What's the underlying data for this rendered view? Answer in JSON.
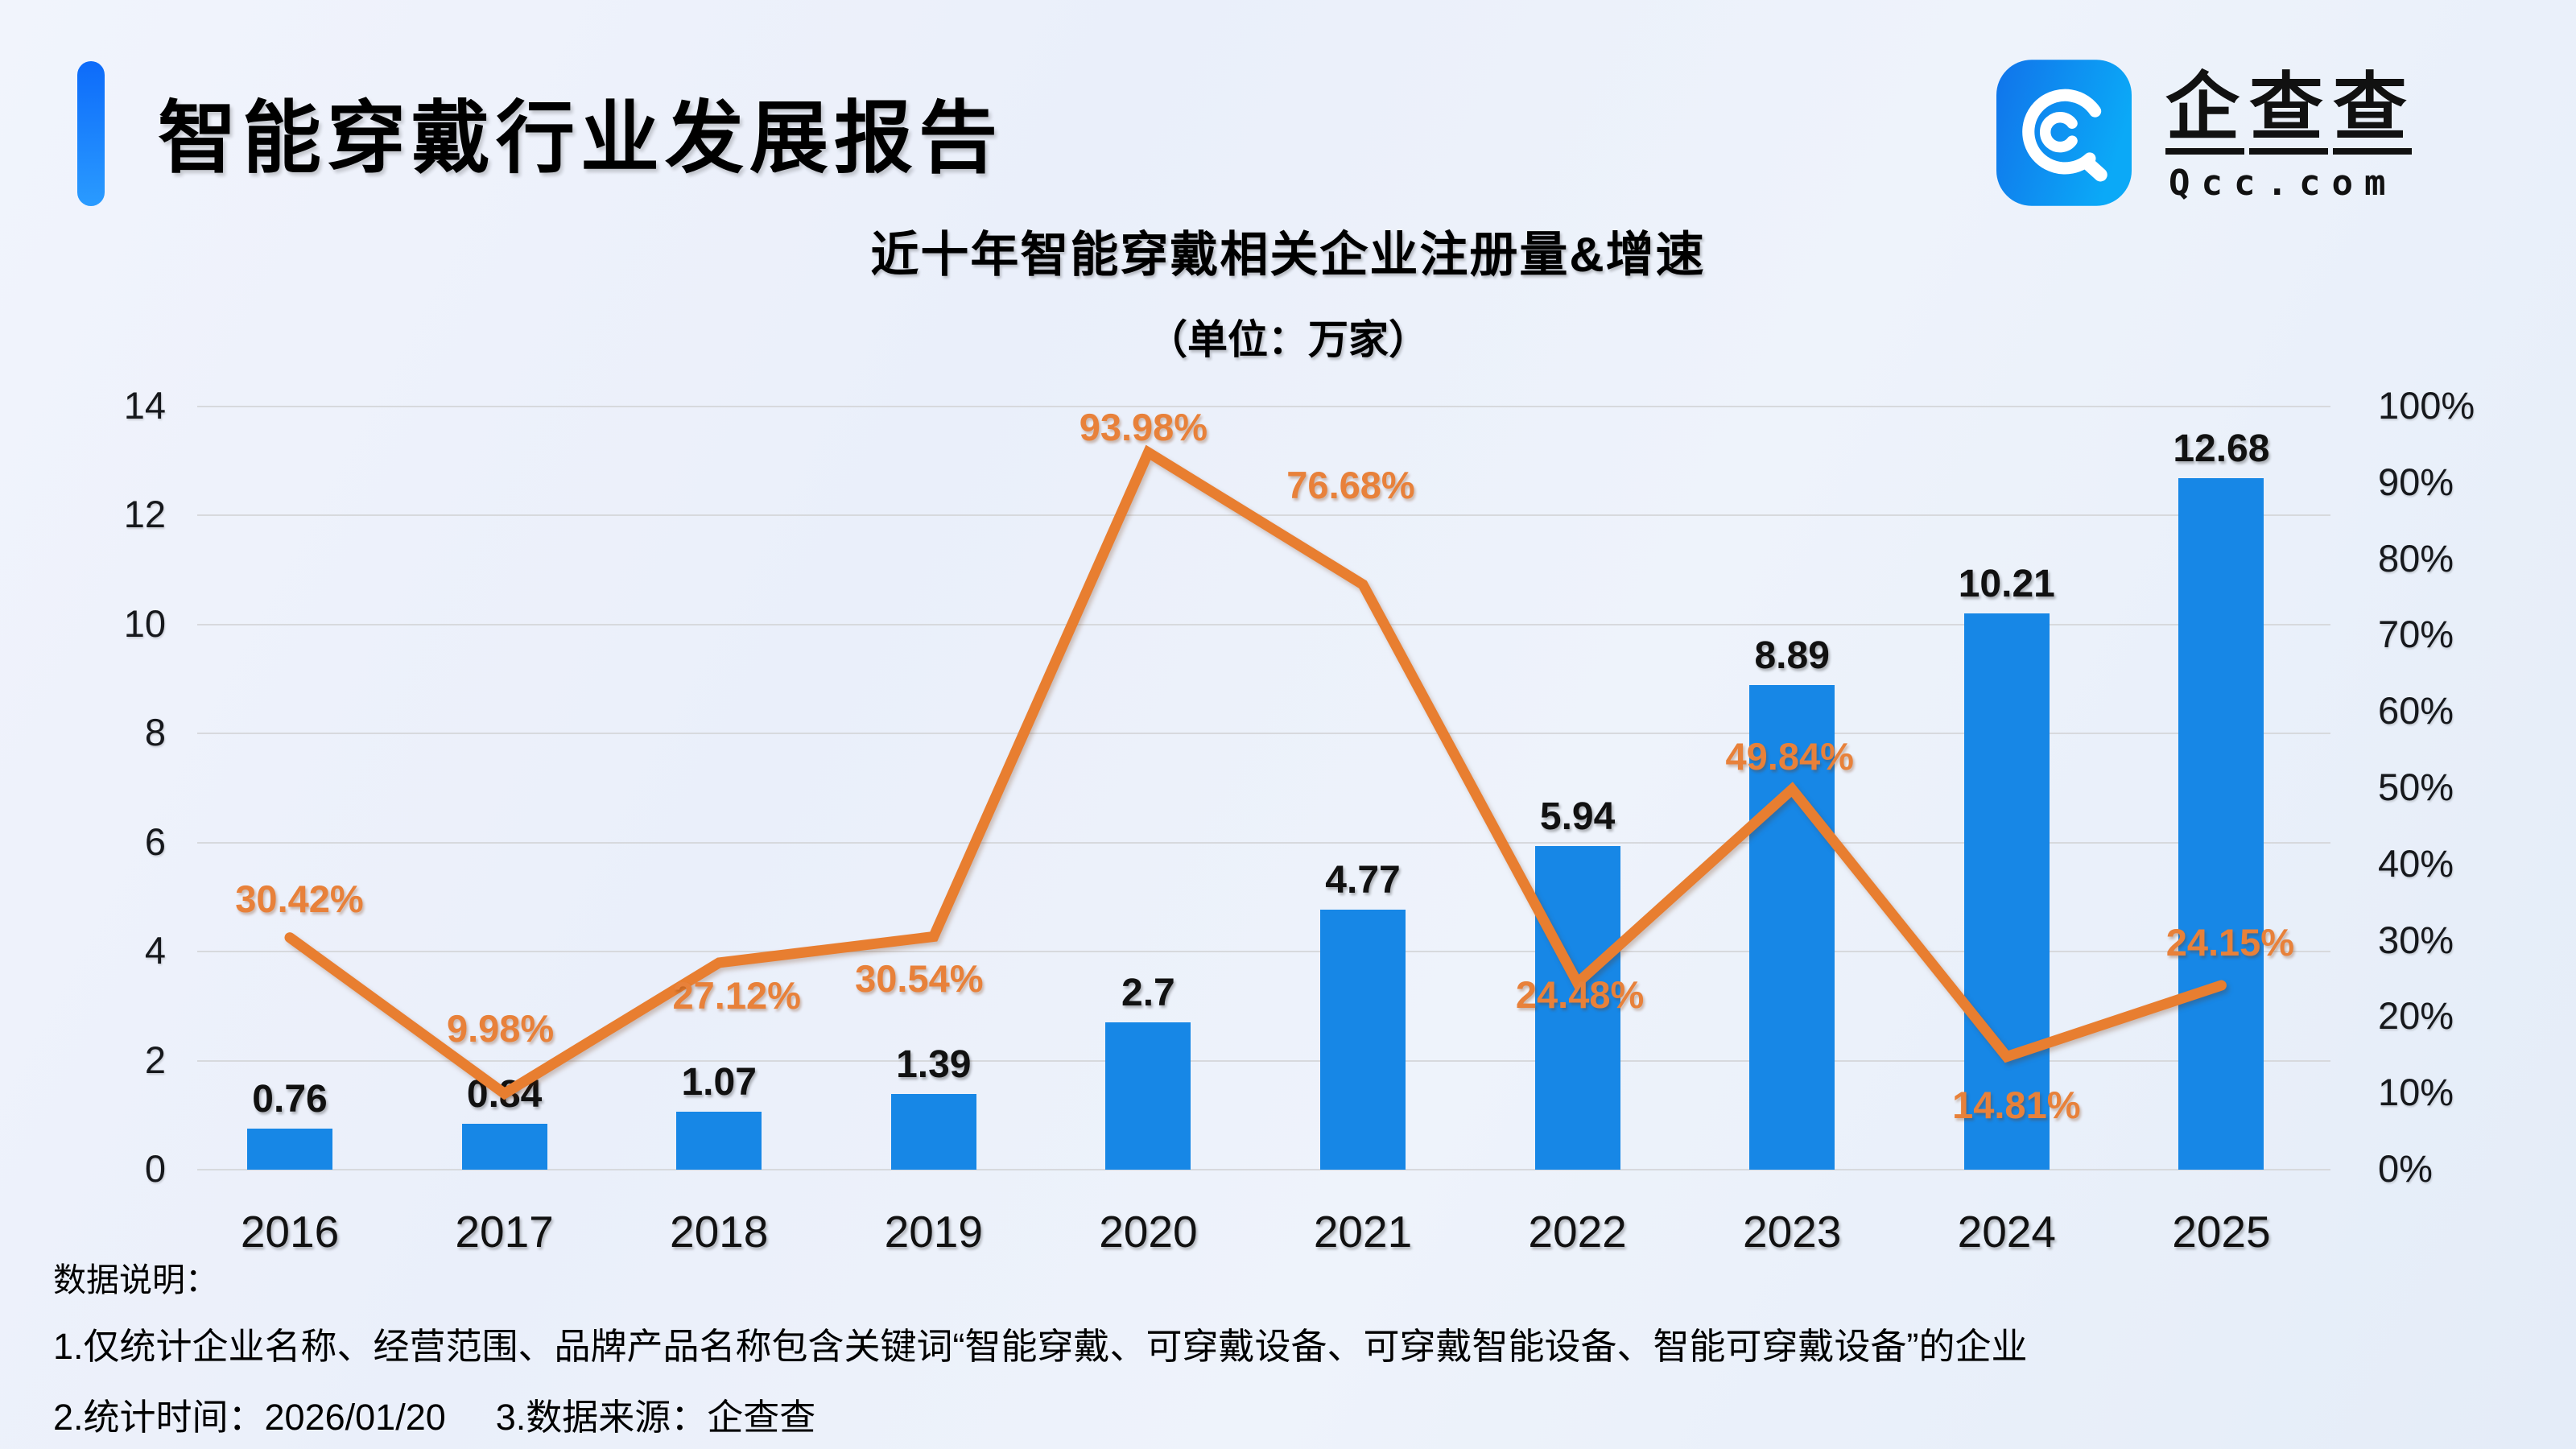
{
  "header": {
    "title": "智能穿戴行业发展报告",
    "accent_color": "#1677ff",
    "logo": {
      "brand": "企查查",
      "domain": "Qcc.com",
      "icon": "qcc-magnifier-icon",
      "icon_color_from": "#1173ea",
      "icon_color_to": "#0ba9f7"
    }
  },
  "chart": {
    "title": "近十年智能穿戴相关企业注册量&增速",
    "subtitle": "（单位：万家）"
  },
  "chart_data": {
    "type": "bar+line",
    "title": "近十年智能穿戴相关企业注册量&增速",
    "subtitle": "（单位：万家）",
    "unit": "万家",
    "categories": [
      "2016",
      "2017",
      "2018",
      "2019",
      "2020",
      "2021",
      "2022",
      "2023",
      "2024",
      "2025"
    ],
    "series": [
      {
        "name": "注册量",
        "type": "bar",
        "color": "#1787e6",
        "values": [
          0.76,
          0.84,
          1.07,
          1.39,
          2.7,
          4.77,
          5.94,
          8.89,
          10.21,
          12.68
        ],
        "labels": [
          "0.76",
          "0.84",
          "1.07",
          "1.39",
          "2.7",
          "4.77",
          "5.94",
          "8.89",
          "10.21",
          "12.68"
        ]
      },
      {
        "name": "增速",
        "type": "line",
        "color": "#e87e30",
        "values": [
          30.42,
          9.98,
          27.12,
          30.54,
          93.98,
          76.68,
          24.48,
          49.84,
          14.81,
          24.15
        ],
        "labels": [
          "30.42%",
          "9.98%",
          "27.12%",
          "30.54%",
          "93.98%",
          "76.68%",
          "24.48%",
          "49.84%",
          "14.81%",
          "24.15%"
        ]
      }
    ],
    "left_axis": {
      "min": 0,
      "max": 14,
      "step": 2,
      "ticks": [
        "0",
        "2",
        "4",
        "6",
        "8",
        "10",
        "12",
        "14"
      ]
    },
    "right_axis": {
      "min": 0,
      "max": 100,
      "step": 10,
      "ticks": [
        "0%",
        "10%",
        "20%",
        "30%",
        "40%",
        "50%",
        "60%",
        "70%",
        "80%",
        "90%",
        "100%"
      ]
    },
    "grid": true,
    "legend": "none",
    "gridline_color": "#d7d9dd"
  },
  "footer": {
    "heading": "数据说明：",
    "note1": "1.仅统计企业名称、经营范围、品牌产品名称包含关键词“智能穿戴、可穿戴设备、可穿戴智能设备、智能可穿戴设备”的企业",
    "note2_time": "2.统计时间：2026/01/20",
    "note2_source": "3.数据来源：企查查"
  }
}
